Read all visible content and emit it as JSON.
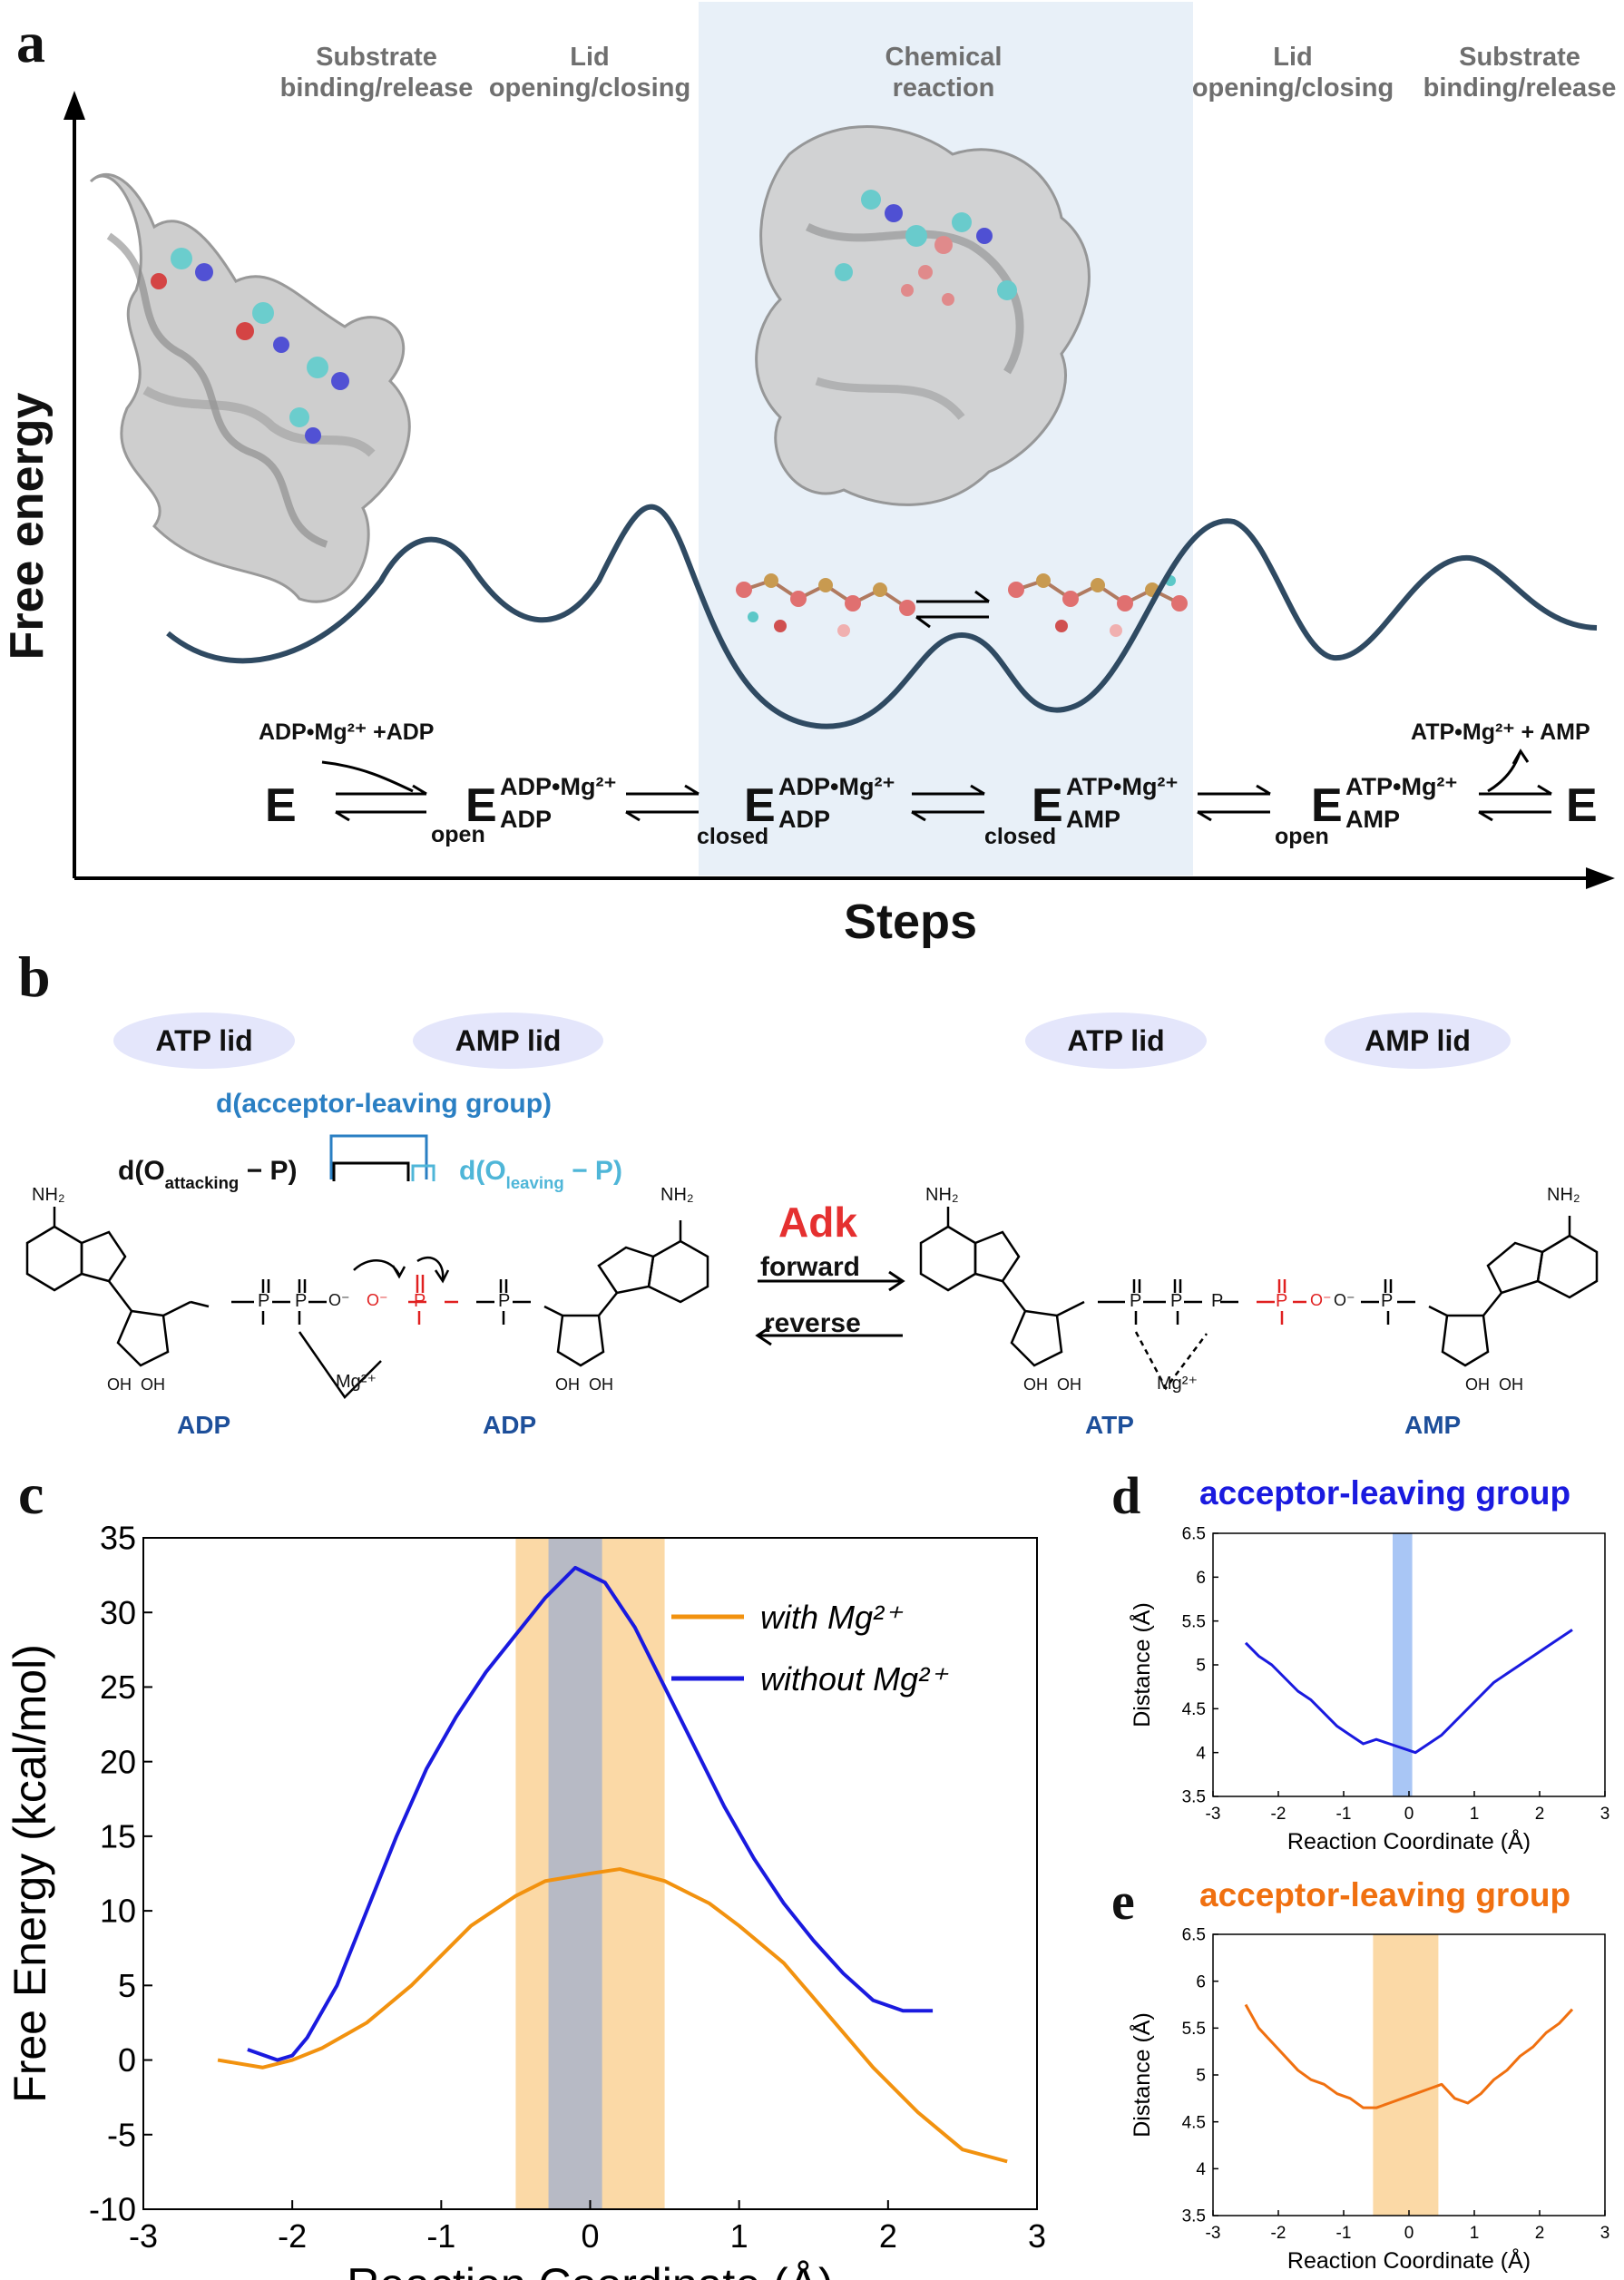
{
  "panel_a": {
    "letter": "a",
    "step_labels": [
      {
        "line1": "Substrate",
        "line2": "binding/release"
      },
      {
        "line1": "Lid",
        "line2": "opening/closing"
      },
      {
        "line1": "Chemical",
        "line2": "reaction"
      },
      {
        "line1": "Lid",
        "line2": "opening/closing"
      },
      {
        "line1": "Substrate",
        "line2": "binding/release"
      }
    ],
    "ylabel": "Free energy",
    "xlabel": "Steps",
    "scheme": {
      "E_left": "E",
      "E_right": "E",
      "substrate_in": "ADP•Mg²⁺ +ADP",
      "product_out": "ATP•Mg²⁺ + AMP",
      "states": [
        {
          "E": "E",
          "sub": "open",
          "top": "ADP•Mg²⁺",
          "bottom": "ADP"
        },
        {
          "E": "E",
          "sub": "closed",
          "top": "ADP•Mg²⁺",
          "bottom": "ADP"
        },
        {
          "E": "E",
          "sub": "closed",
          "top": "ATP•Mg²⁺",
          "bottom": "AMP"
        },
        {
          "E": "E",
          "sub": "open",
          "top": "ATP•Mg²⁺",
          "bottom": "AMP"
        }
      ]
    },
    "colors": {
      "profile": "#2f4a62",
      "highlight": "#e8f0f8"
    }
  },
  "panel_b": {
    "letter": "b",
    "lids": [
      "ATP lid",
      "AMP lid",
      "ATP lid",
      "AMP lid"
    ],
    "d_acceptor": "d(acceptor-leaving group)",
    "d_attacking_pre": "d(O",
    "d_attacking_sub": "attacking",
    "d_attacking_post": "− P)",
    "d_leaving_pre": "d(O",
    "d_leaving_sub": "leaving",
    "d_leaving_post": "− P)",
    "enzyme": "Adk",
    "forward": "forward",
    "reverse": "reverse",
    "molecule_labels": [
      "ADP",
      "ADP",
      "ATP",
      "AMP"
    ],
    "atoms": {
      "nh2": "NH₂",
      "oh": "OH",
      "mg": "Mg²⁺",
      "p": "P",
      "o": "O",
      "ominus": "O⁻",
      "n": "N"
    }
  },
  "panel_c": {
    "letter": "c",
    "chart_data": {
      "type": "line",
      "xlabel": "Reaction Coordinate (Å)",
      "ylabel": "Free Energy (kcal/mol)",
      "xlim": [
        -3,
        3
      ],
      "ylim": [
        -10,
        35
      ],
      "xticks": [
        -3,
        -2,
        -1,
        0,
        1,
        2,
        3
      ],
      "yticks": [
        -10,
        -5,
        0,
        5,
        10,
        15,
        20,
        25,
        30,
        35
      ],
      "shaded_regions": [
        {
          "x0": -0.5,
          "x1": 0.5,
          "color": "#fbd9a6"
        },
        {
          "x0": -0.28,
          "x1": 0.08,
          "color": "#b3b8c6"
        }
      ],
      "series": [
        {
          "name": "with Mg²⁺",
          "color": "#f2920f",
          "x": [
            -2.5,
            -2.2,
            -2.0,
            -1.8,
            -1.5,
            -1.2,
            -1.0,
            -0.8,
            -0.5,
            -0.3,
            0.0,
            0.2,
            0.5,
            0.8,
            1.0,
            1.3,
            1.6,
            1.9,
            2.2,
            2.5,
            2.8
          ],
          "y": [
            0,
            -0.5,
            0,
            0.8,
            2.5,
            5,
            7,
            9,
            11,
            12,
            12.5,
            12.8,
            12,
            10.5,
            9,
            6.5,
            3,
            -0.5,
            -3.5,
            -6,
            -6.8
          ]
        },
        {
          "name": "without Mg²⁺",
          "color": "#1a1adf",
          "x": [
            -2.3,
            -2.1,
            -2.0,
            -1.9,
            -1.7,
            -1.5,
            -1.3,
            -1.1,
            -0.9,
            -0.7,
            -0.5,
            -0.3,
            -0.1,
            0.1,
            0.3,
            0.5,
            0.7,
            0.9,
            1.1,
            1.3,
            1.5,
            1.7,
            1.9,
            2.1,
            2.3
          ],
          "y": [
            0.7,
            0,
            0.3,
            1.5,
            5,
            10,
            15,
            19.5,
            23,
            26,
            28.5,
            31,
            33,
            32,
            29,
            25,
            21,
            17,
            13.5,
            10.5,
            8,
            5.8,
            4,
            3.3,
            3.3
          ]
        }
      ]
    }
  },
  "panel_d": {
    "letter": "d",
    "title": "acceptor-leaving group",
    "title_color": "#1a1adf",
    "chart_data": {
      "type": "line",
      "xlabel": "Reaction Coordinate (Å)",
      "ylabel": "Distance (Å)",
      "xlim": [
        -3,
        3
      ],
      "ylim": [
        3.5,
        6.5
      ],
      "xticks": [
        -3,
        -2,
        -1,
        0,
        1,
        2,
        3
      ],
      "yticks": [
        3.5,
        4,
        4.5,
        5,
        5.5,
        6,
        6.5
      ],
      "shaded_regions": [
        {
          "x0": -0.25,
          "x1": 0.05,
          "color": "#a9c6f5"
        }
      ],
      "series": [
        {
          "name": "",
          "color": "#1a1adf",
          "x": [
            -2.5,
            -2.3,
            -2.1,
            -1.9,
            -1.7,
            -1.5,
            -1.3,
            -1.1,
            -0.9,
            -0.7,
            -0.5,
            -0.3,
            -0.1,
            0.1,
            0.3,
            0.5,
            0.7,
            0.9,
            1.1,
            1.3,
            1.5,
            1.7,
            1.9,
            2.1,
            2.3,
            2.5
          ],
          "y": [
            5.25,
            5.1,
            5.0,
            4.85,
            4.7,
            4.6,
            4.45,
            4.3,
            4.2,
            4.1,
            4.15,
            4.1,
            4.05,
            4.0,
            4.1,
            4.2,
            4.35,
            4.5,
            4.65,
            4.8,
            4.9,
            5.0,
            5.1,
            5.2,
            5.3,
            5.4
          ]
        }
      ]
    }
  },
  "panel_e": {
    "letter": "e",
    "title": "acceptor-leaving group",
    "title_color": "#f07010",
    "chart_data": {
      "type": "line",
      "xlabel": "Reaction Coordinate (Å)",
      "ylabel": "Distance (Å)",
      "xlim": [
        -3,
        3
      ],
      "ylim": [
        3.5,
        6.5
      ],
      "xticks": [
        -3,
        -2,
        -1,
        0,
        1,
        2,
        3
      ],
      "yticks": [
        3.5,
        4,
        4.5,
        5,
        5.5,
        6,
        6.5
      ],
      "shaded_regions": [
        {
          "x0": -0.55,
          "x1": 0.45,
          "color": "#fbd9a6"
        }
      ],
      "series": [
        {
          "name": "",
          "color": "#f07010",
          "x": [
            -2.5,
            -2.3,
            -2.1,
            -1.9,
            -1.7,
            -1.5,
            -1.3,
            -1.1,
            -0.9,
            -0.7,
            -0.5,
            -0.3,
            -0.1,
            0.1,
            0.3,
            0.5,
            0.7,
            0.9,
            1.1,
            1.3,
            1.5,
            1.7,
            1.9,
            2.1,
            2.3,
            2.5
          ],
          "y": [
            5.75,
            5.5,
            5.35,
            5.2,
            5.05,
            4.95,
            4.9,
            4.8,
            4.75,
            4.65,
            4.65,
            4.7,
            4.75,
            4.8,
            4.85,
            4.9,
            4.75,
            4.7,
            4.8,
            4.95,
            5.05,
            5.2,
            5.3,
            5.45,
            5.55,
            5.7
          ]
        }
      ]
    }
  }
}
